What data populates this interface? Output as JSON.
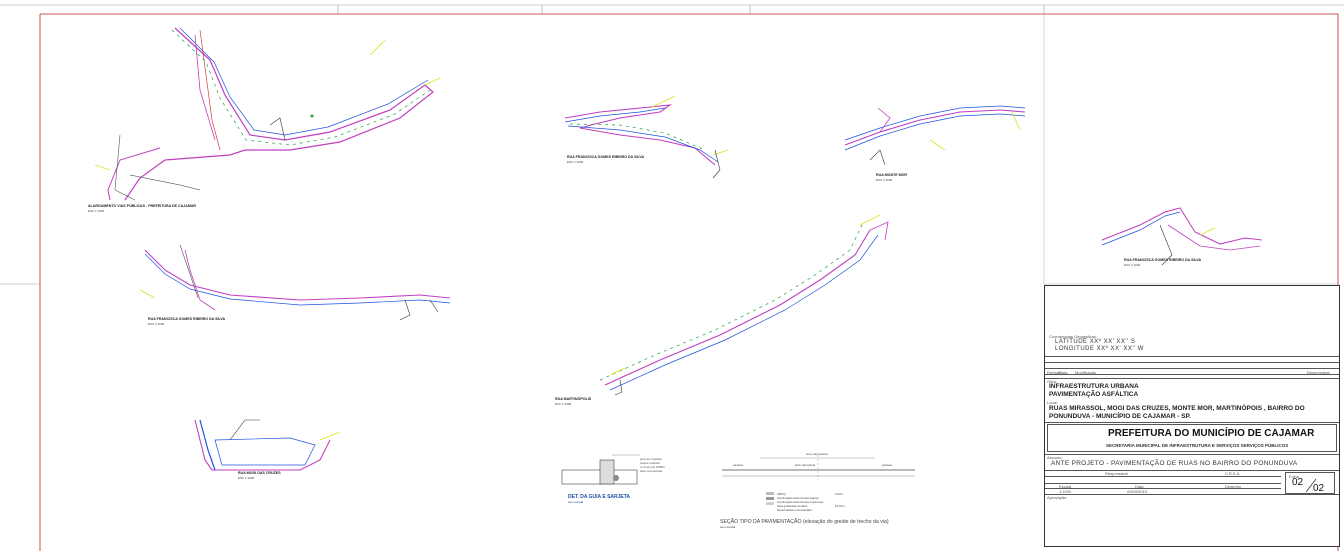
{
  "title_block": {
    "coord_label": "Coordenadas Geográficas:",
    "latitude": "LATITUDE XXº XX' XX'' S",
    "longitude": "LONGITUDE XXº XX' XX'' W",
    "rev_headers": [
      "Revisão",
      "Data",
      "Modificação",
      "Responsável"
    ],
    "obra_label": "Obra:",
    "obra_line1": "INFRAESTRUTURA URBANA",
    "obra_line2": "PAVIMENTAÇÃO ASFÁLTICA",
    "local_label": "Local:",
    "local_line1": "RUAS MIRASSOL, MOGI DAS CRUZES,  MONTE MOR, MARTINÓPOIS , BAIRRO DO",
    "local_line2": "PONUNDUVA  -  MUNICÍPIO DE CAJAMAR - SP.",
    "prefeitura": "PREFEITURA DO MUNICÍPIO DE CAJAMAR",
    "secretaria": "SECRETARIA MUNICIPAL DE INFRAESTRUTURA E SERVIÇOS  SERVIÇOS PÚBLICOS",
    "assunto_label": "Assunto:",
    "assunto": "ANTE PROJETO -   PAVIMENTAÇÃO DE RUAS NO BAIRRO DO PONUNDUVA",
    "resp_label": "Responsável",
    "crea_label": "C.R.E.A.",
    "escala_label": "Escala",
    "escala": "1:1000",
    "data_label": "Data",
    "data": "03/09/2019",
    "desenho_label": "Desenho",
    "folha_label": "Folha",
    "folha_num": "02",
    "folha_total": "02",
    "aprovacao_label": "Aprovação:"
  },
  "drawing_labels": {
    "plan1": "ALARGAMENTO VIAS PÚBLICAS - PREFEITURA DE CAJAMAR",
    "plan2": "RUA FRANCISCA GOMES  RIBEIRO DA SILVA",
    "plan3": "RUA MONTE MOR",
    "plan4": "RUA FRANCISCA GOMES RIBEIRO DA SILVA",
    "plan5": "RUA FRANCISCA GOMES RIBEIRO DA SILVA",
    "plan6": "RUA MARTINÓPOLIS",
    "plan7": "RUA MOGI DAS CRUZES",
    "scale": "ESC 1:1000",
    "detail_title": "DET. DA GUIA E SARJETA",
    "detail_scale": "sem escala",
    "section_title": "SEÇÃO TIPO DA PAVIMENTAÇÃO (elevação do greide de trecho da via)",
    "section_scale": "sem escala",
    "section_center": "eixo carrossável",
    "section_leito": "leito carroçável",
    "section_calcada_l": "passeio",
    "section_calcada_r": "passeio",
    "legend": [
      "CBUQ",
      "imprimação betuminosa ligante",
      "imprimação betuminosa impermea.",
      "brita graduada simples",
      "base/subleito compactado"
    ],
    "legend_values": [
      "3,0cm",
      "",
      "",
      "15,0cm",
      ""
    ],
    "detail_notes": [
      "guia pré-moldada",
      "sarjeta moldada",
      "concreto fck 20MPa",
      "base compactada"
    ]
  },
  "colors": {
    "border": "#333333",
    "frame_red": "#d02020",
    "road_magenta": "#c040c0",
    "road_blue": "#2050e0",
    "road_green": "#20a040",
    "yellow": "#e0e020"
  }
}
